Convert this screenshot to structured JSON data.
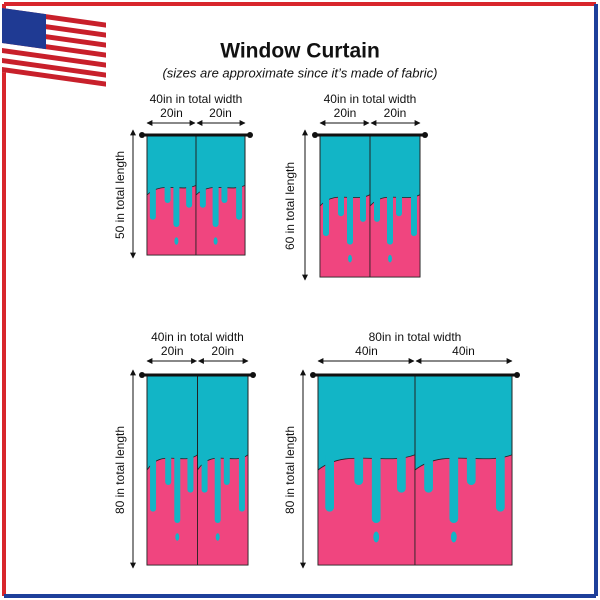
{
  "title": "Window Curtain",
  "subtitle": "(sizes are approximate since it’s made of fabric)",
  "panels": [
    {
      "total_width": "40in in total width",
      "left_width": "20in",
      "right_width": "20in",
      "length": "50 in total length"
    },
    {
      "total_width": "40in in total width",
      "left_width": "20in",
      "right_width": "20in",
      "length": "60 in total length"
    },
    {
      "total_width": "40in in total width",
      "left_width": "20in",
      "right_width": "20in",
      "length": "80 in total length"
    },
    {
      "total_width": "80in in total width",
      "left_width": "40in",
      "right_width": "40in",
      "length": "80 in total length"
    }
  ]
}
